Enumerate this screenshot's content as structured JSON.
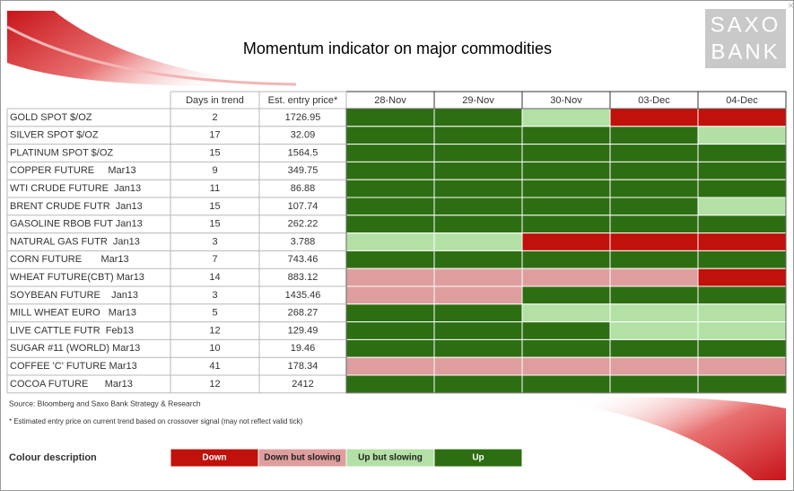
{
  "header": {
    "title": "Momentum indicator on major commodities",
    "logo": [
      "SAXO",
      "BANK"
    ]
  },
  "table": {
    "columns": [
      "Days in trend",
      "Est. entry price*"
    ],
    "dates": [
      "28-Nov",
      "29-Nov",
      "30-Nov",
      "03-Dec",
      "04-Dec"
    ],
    "rows": [
      {
        "name": "GOLD SPOT $/OZ",
        "days": 2,
        "price": 1726.95,
        "trend": [
          "#2d6e12",
          "#2d6e12",
          "#b3e0a5",
          "#c0110a",
          "#c0110a"
        ]
      },
      {
        "name": "SILVER SPOT $/OZ",
        "days": 17,
        "price": 32.09,
        "trend": [
          "#2d6e12",
          "#2d6e12",
          "#2d6e12",
          "#2d6e12",
          "#b3e0a5"
        ]
      },
      {
        "name": "PLATINUM SPOT $/OZ",
        "days": 15,
        "price": 1564.5,
        "trend": [
          "#2d6e12",
          "#2d6e12",
          "#2d6e12",
          "#2d6e12",
          "#2d6e12"
        ]
      },
      {
        "name": "COPPER FUTURE     Mar13",
        "days": 9,
        "price": 349.75,
        "trend": [
          "#2d6e12",
          "#2d6e12",
          "#2d6e12",
          "#2d6e12",
          "#2d6e12"
        ]
      },
      {
        "name": "WTI CRUDE FUTURE  Jan13",
        "days": 11,
        "price": 86.88,
        "trend": [
          "#2d6e12",
          "#2d6e12",
          "#2d6e12",
          "#2d6e12",
          "#2d6e12"
        ]
      },
      {
        "name": "BRENT CRUDE FUTR  Jan13",
        "days": 15,
        "price": 107.74,
        "trend": [
          "#2d6e12",
          "#2d6e12",
          "#2d6e12",
          "#2d6e12",
          "#b3e0a5"
        ]
      },
      {
        "name": "GASOLINE RBOB FUT Jan13",
        "days": 15,
        "price": 262.22,
        "trend": [
          "#2d6e12",
          "#2d6e12",
          "#2d6e12",
          "#2d6e12",
          "#2d6e12"
        ]
      },
      {
        "name": "NATURAL GAS FUTR  Jan13",
        "days": 3,
        "price": 3.788,
        "trend": [
          "#b3e0a5",
          "#b3e0a5",
          "#c0110a",
          "#c0110a",
          "#c0110a"
        ]
      },
      {
        "name": "CORN FUTURE       Mar13",
        "days": 7,
        "price": 743.46,
        "trend": [
          "#2d6e12",
          "#2d6e12",
          "#2d6e12",
          "#2d6e12",
          "#2d6e12"
        ]
      },
      {
        "name": "WHEAT FUTURE(CBT) Mar13",
        "days": 14,
        "price": 883.12,
        "trend": [
          "#df9e9e",
          "#df9e9e",
          "#df9e9e",
          "#df9e9e",
          "#c0110a"
        ]
      },
      {
        "name": "SOYBEAN FUTURE    Jan13",
        "days": 3,
        "price": 1435.46,
        "trend": [
          "#df9e9e",
          "#df9e9e",
          "#2d6e12",
          "#2d6e12",
          "#2d6e12"
        ]
      },
      {
        "name": "MILL WHEAT EURO   Mar13",
        "days": 5,
        "price": 268.27,
        "trend": [
          "#2d6e12",
          "#2d6e12",
          "#b3e0a5",
          "#b3e0a5",
          "#b3e0a5"
        ]
      },
      {
        "name": "LIVE CATTLE FUTR  Feb13",
        "days": 12,
        "price": 129.49,
        "trend": [
          "#2d6e12",
          "#2d6e12",
          "#2d6e12",
          "#b3e0a5",
          "#b3e0a5"
        ]
      },
      {
        "name": "SUGAR #11 (WORLD) Mar13",
        "days": 10,
        "price": 19.46,
        "trend": [
          "#2d6e12",
          "#2d6e12",
          "#2d6e12",
          "#2d6e12",
          "#2d6e12"
        ]
      },
      {
        "name": "COFFEE 'C' FUTURE Mar13",
        "days": 41,
        "price": 178.34,
        "trend": [
          "#df9e9e",
          "#df9e9e",
          "#df9e9e",
          "#df9e9e",
          "#df9e9e"
        ]
      },
      {
        "name": "COCOA FUTURE      Mar13",
        "days": 12,
        "price": 2412,
        "trend": [
          "#2d6e12",
          "#2d6e12",
          "#2d6e12",
          "#2d6e12",
          "#2d6e12"
        ]
      }
    ]
  },
  "source": "Source: Bloomberg and Saxo Bank Strategy & Research",
  "footnote": "* Estimated entry price on current trend based on crossover signal (may not reflect valid tick)",
  "legend": {
    "title": "Colour description",
    "items": [
      {
        "label": "Down",
        "color": "#c0110a"
      },
      {
        "label": "Down but slowing",
        "color": "#df9e9e"
      },
      {
        "label": "Up but slowing",
        "color": "#b3e0a5"
      },
      {
        "label": "Up",
        "color": "#2d6e12"
      }
    ]
  }
}
